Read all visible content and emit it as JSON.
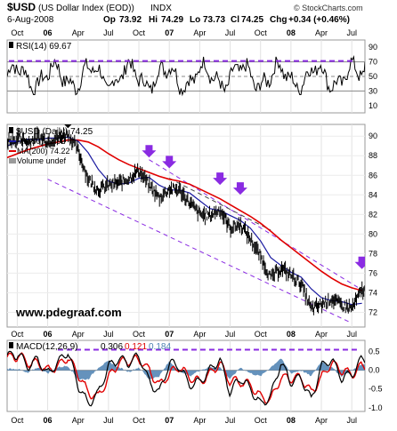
{
  "header": {
    "symbol": "$USD",
    "name": "(US Dollar Index (EOD))",
    "exchange": "INDX",
    "date": "6-Aug-2008",
    "open_label": "Op",
    "open": "73.92",
    "high_label": "Hi",
    "high": "74.29",
    "low_label": "Lo",
    "low": "73.73",
    "close_label": "Cl",
    "close": "74.25",
    "change_label": "Chg",
    "change": "+0.34 (+0.46%)",
    "branding": "© StockCharts.com"
  },
  "watermark": "www.pdegraaf.com",
  "colors": {
    "price": "#000000",
    "ma50": "#1a1aa0",
    "ma200": "#e00000",
    "volume": "#9a9a9a",
    "annotation": "#8a2be2",
    "macd": "#000000",
    "signal": "#e00000",
    "histogram": "#4a7fb0",
    "rsi_line": "#000000"
  },
  "x_axis_labels_top": [
    "Oct",
    "06",
    "Apr",
    "Jul",
    "Oct",
    "07",
    "Apr",
    "Jul",
    "Oct",
    "08",
    "Apr",
    "Jul"
  ],
  "x_axis_labels_bottom": [
    "Oct",
    "06",
    "Apr",
    "Jul",
    "Oct",
    "07",
    "Apr",
    "Jul",
    "Oct",
    "08",
    "Apr",
    "Jul"
  ],
  "chart_data": [
    {
      "type": "line",
      "panel": "rsi",
      "label": "RSI(14) 69.67",
      "ticks": [
        "90",
        "70",
        "50",
        "30",
        "10"
      ],
      "ylim": [
        0,
        100
      ],
      "overbought": 70,
      "oversold": 30,
      "annotation_line": 70,
      "last": 69.67
    },
    {
      "type": "line",
      "panel": "price",
      "title": "$USD (Daily) 74.25",
      "legend": [
        {
          "label": "MA(50) 72.92",
          "color": "#1a1aa0"
        },
        {
          "label": "MA(200) 74.22",
          "color": "#e00000"
        },
        {
          "label": "Volume undef",
          "color": "#9a9a9a"
        }
      ],
      "ticks": [
        "90",
        "88",
        "86",
        "84",
        "82",
        "80",
        "78",
        "76",
        "74",
        "72"
      ],
      "ylim": [
        70.5,
        91.2
      ],
      "x_months": [
        "2005-09",
        "2005-10",
        "2005-11",
        "2005-12",
        "2006-01",
        "2006-02",
        "2006-03",
        "2006-04",
        "2006-05",
        "2006-06",
        "2006-07",
        "2006-08",
        "2006-09",
        "2006-10",
        "2006-11",
        "2006-12",
        "2007-01",
        "2007-02",
        "2007-03",
        "2007-04",
        "2007-05",
        "2007-06",
        "2007-07",
        "2007-08",
        "2007-09",
        "2007-10",
        "2007-11",
        "2007-12",
        "2008-01",
        "2008-02",
        "2008-03",
        "2008-04",
        "2008-05",
        "2008-06",
        "2008-07",
        "2008-08"
      ],
      "series": [
        {
          "name": "$USD",
          "values": [
            89.5,
            90.2,
            89.3,
            90.0,
            89.5,
            89.8,
            90.3,
            88.5,
            85.6,
            84.5,
            85.0,
            85.2,
            85.7,
            86.5,
            85.0,
            83.7,
            84.6,
            84.5,
            83.2,
            82.0,
            81.9,
            82.5,
            80.6,
            81.0,
            79.5,
            77.7,
            75.5,
            76.5,
            75.8,
            74.9,
            72.3,
            72.8,
            73.4,
            72.7,
            72.4,
            74.25
          ]
        },
        {
          "name": "MA(50)",
          "values": [
            89.0,
            89.4,
            89.7,
            89.6,
            89.8,
            89.8,
            89.9,
            89.5,
            88.3,
            86.6,
            85.4,
            85.1,
            85.2,
            85.7,
            85.8,
            85.0,
            84.5,
            84.5,
            84.2,
            83.4,
            82.6,
            82.4,
            81.9,
            81.4,
            80.6,
            79.3,
            77.6,
            76.8,
            76.1,
            75.6,
            74.4,
            73.5,
            73.2,
            73.1,
            72.8,
            72.92
          ]
        },
        {
          "name": "MA(200)",
          "values": [
            87.8,
            88.2,
            88.6,
            88.9,
            89.2,
            89.4,
            89.6,
            89.6,
            89.4,
            88.9,
            88.2,
            87.6,
            87.1,
            86.7,
            86.3,
            85.9,
            85.6,
            85.4,
            85.1,
            84.6,
            84.1,
            83.6,
            83.0,
            82.4,
            81.8,
            81.1,
            80.3,
            79.4,
            78.6,
            77.8,
            77.0,
            76.2,
            75.5,
            74.9,
            74.5,
            74.22
          ]
        }
      ],
      "annotations": {
        "upper_channel": [
          [
            "2006-11",
            87.6
          ],
          [
            "2008-08",
            74.3
          ]
        ],
        "lower_channel": [
          [
            "2006-01",
            85.6
          ],
          [
            "2008-07",
            70.9
          ]
        ],
        "middle_channel": [
          [
            "2007-01",
            85.7
          ],
          [
            "2007-11",
            80.4
          ]
        ],
        "arrows": [
          {
            "x": "2006-03",
            "y": 91.0,
            "color": "black"
          },
          {
            "x": "2006-11",
            "y": 88.0,
            "color": "purple"
          },
          {
            "x": "2007-01",
            "y": 86.9,
            "color": "purple"
          },
          {
            "x": "2007-06",
            "y": 85.2,
            "color": "purple"
          },
          {
            "x": "2007-08",
            "y": 84.2,
            "color": "purple"
          },
          {
            "x": "2008-08",
            "y": 76.6,
            "color": "purple"
          }
        ]
      }
    },
    {
      "type": "line",
      "panel": "macd",
      "label": "MACD(12,26,9)",
      "macd_value": "0.306",
      "signal_value": "0.121",
      "histogram_value": "0.184",
      "ticks": [
        "0.5",
        "0.0",
        "-0.5",
        "-1.0"
      ],
      "ylim": [
        -1.1,
        0.8
      ],
      "annotation_line": 0.55,
      "x_months": [
        "2005-09",
        "2005-10",
        "2005-11",
        "2005-12",
        "2006-01",
        "2006-02",
        "2006-03",
        "2006-04",
        "2006-05",
        "2006-06",
        "2006-07",
        "2006-08",
        "2006-09",
        "2006-10",
        "2006-11",
        "2006-12",
        "2007-01",
        "2007-02",
        "2007-03",
        "2007-04",
        "2007-05",
        "2007-06",
        "2007-07",
        "2007-08",
        "2007-09",
        "2007-10",
        "2007-11",
        "2007-12",
        "2008-01",
        "2008-02",
        "2008-03",
        "2008-04",
        "2008-05",
        "2008-06",
        "2008-07",
        "2008-08"
      ],
      "series": [
        {
          "name": "MACD",
          "values": [
            0.4,
            0.5,
            0.1,
            0.3,
            -0.1,
            0.2,
            0.5,
            -0.4,
            -0.9,
            -0.6,
            0.1,
            0.3,
            0.2,
            0.4,
            -0.3,
            -0.6,
            0.2,
            0.1,
            -0.4,
            -0.3,
            0.0,
            0.3,
            -0.6,
            -0.2,
            -0.5,
            -0.9,
            -0.7,
            0.2,
            -0.3,
            -0.2,
            -0.8,
            0.1,
            0.3,
            -0.2,
            -0.1,
            0.306
          ]
        },
        {
          "name": "Signal",
          "values": [
            0.35,
            0.45,
            0.2,
            0.2,
            0.0,
            0.1,
            0.35,
            -0.1,
            -0.6,
            -0.7,
            -0.2,
            0.2,
            0.25,
            0.3,
            0.0,
            -0.4,
            -0.1,
            0.1,
            -0.2,
            -0.3,
            -0.1,
            0.2,
            -0.3,
            -0.3,
            -0.4,
            -0.7,
            -0.8,
            -0.2,
            -0.2,
            -0.2,
            -0.6,
            -0.2,
            0.2,
            0.0,
            -0.1,
            0.121
          ]
        }
      ]
    }
  ]
}
